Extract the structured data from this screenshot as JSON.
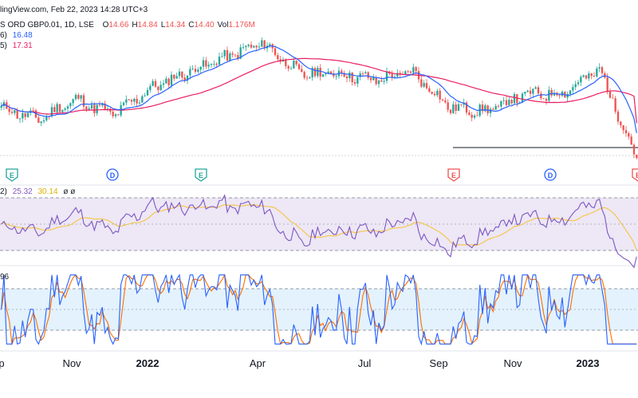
{
  "header": {
    "line1": "lingView.com, Feb 22, 2023 14:28 UTC+3",
    "line2_prefix": "S ORD GBP0.01, 1D, LSE",
    "ohlc": [
      {
        "label": "O",
        "value": "14.66"
      },
      {
        "label": "H",
        "value": "14.84"
      },
      {
        "label": "L",
        "value": "14.34"
      },
      {
        "label": "C",
        "value": "14.40"
      },
      {
        "label": "Vol",
        "value": "1.176M"
      }
    ],
    "ma_fast_label": "6)",
    "ma_fast_value": "16.48",
    "ma_slow_label": "5)",
    "ma_slow_value": "17.31"
  },
  "rsi_legend": {
    "label": "2)",
    "rsi": "25.32",
    "signal": "30.14",
    "extra": "ø ø"
  },
  "stoch_legend": {
    "value": "96"
  },
  "time_axis": [
    {
      "label": "p",
      "bold": false
    },
    {
      "label": "Nov",
      "bold": false
    },
    {
      "label": "2022",
      "bold": true
    },
    {
      "label": "Apr",
      "bold": false
    },
    {
      "label": "Jul",
      "bold": false
    },
    {
      "label": "Sep",
      "bold": false
    },
    {
      "label": "Nov",
      "bold": false
    },
    {
      "label": "2023",
      "bold": true
    }
  ],
  "event_markers": [
    {
      "letter": "E",
      "kind": "earnings-past"
    },
    {
      "letter": "D",
      "kind": "dividend"
    },
    {
      "letter": "E",
      "kind": "earnings-past"
    },
    {
      "letter": "E",
      "kind": "earnings-future"
    },
    {
      "letter": "D",
      "kind": "dividend"
    },
    {
      "letter": "E",
      "kind": "earnings-future"
    }
  ],
  "colors": {
    "up": "#26a69a",
    "down": "#ef5350",
    "ma_fast": "#2962ff",
    "ma_slow": "#e91e63",
    "rsi": "#7e57c2",
    "rsi_signal": "#f5c542",
    "rsi_band": "#ede7f6",
    "stoch_k": "#2962ff",
    "stoch_d": "#ff6d00",
    "stoch_band": "#e3f2fd",
    "dividend": "#2962ff",
    "earnings_past": "#26a69a",
    "earnings_future": "#ef5350"
  },
  "chart_data": [
    {
      "type": "candlestick",
      "title": "S ORD GBP0.01, 1D, LSE",
      "x_start": "Sep 2021",
      "x_end": "Feb 2023",
      "last_candle": {
        "open": 14.66,
        "high": 14.84,
        "low": 14.34,
        "close": 14.4,
        "volume": "1.176M"
      },
      "overlays": [
        {
          "name": "MA fast",
          "last_value": 16.48
        },
        {
          "name": "MA slow",
          "last_value": 17.31
        }
      ],
      "price_path_keypoints": [
        {
          "date": "Sep 2021",
          "price": 18.6
        },
        {
          "date": "Oct 2021",
          "price": 17.6
        },
        {
          "date": "Nov 2021",
          "price": 19.3
        },
        {
          "date": "Dec 2021",
          "price": 18.0
        },
        {
          "date": "Jan 2022",
          "price": 20.2
        },
        {
          "date": "Feb 2022",
          "price": 21.6
        },
        {
          "date": "Mar 2022",
          "price": 22.8
        },
        {
          "date": "Apr 2022",
          "price": 24.0
        },
        {
          "date": "May 2022",
          "price": 21.4
        },
        {
          "date": "Jun 2022",
          "price": 21.5
        },
        {
          "date": "Jul 2022",
          "price": 20.9
        },
        {
          "date": "Aug 2022",
          "price": 21.6
        },
        {
          "date": "Sep 2022",
          "price": 18.6
        },
        {
          "date": "Oct 2022",
          "price": 18.3
        },
        {
          "date": "Nov 2022",
          "price": 19.7
        },
        {
          "date": "Dec 2022",
          "price": 19.8
        },
        {
          "date": "Jan 2023",
          "price": 21.8
        },
        {
          "date": "Feb 2023",
          "price": 14.4
        }
      ]
    },
    {
      "type": "line",
      "title": "RSI",
      "series": [
        {
          "name": "RSI",
          "last_value": 25.32
        },
        {
          "name": "RSI-based MA",
          "last_value": 30.14
        }
      ],
      "ylim": [
        0,
        100
      ],
      "bands": [
        30,
        70
      ]
    },
    {
      "type": "line",
      "title": "Stochastic",
      "series": [
        {
          "name": "%K"
        },
        {
          "name": "%D"
        }
      ],
      "ylim": [
        0,
        100
      ],
      "bands": [
        20,
        80
      ]
    }
  ]
}
